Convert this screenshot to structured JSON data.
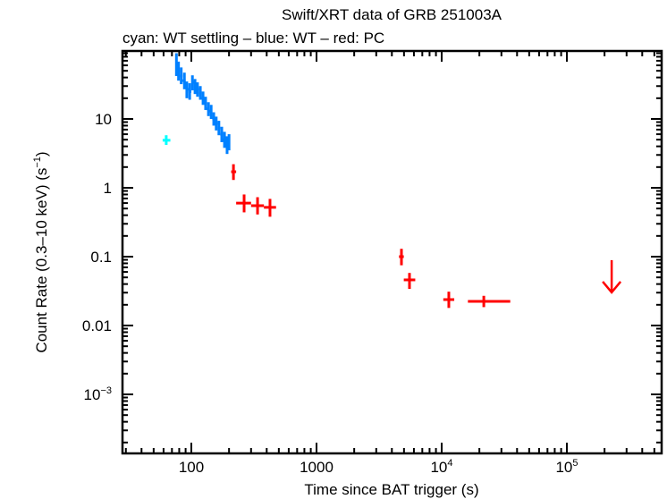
{
  "chart_data": {
    "type": "scatter",
    "title": "Swift/XRT data of GRB 251003A",
    "subtitle": "cyan: WT settling – blue: WT – red: PC",
    "xlabel": "Time since BAT trigger (s)",
    "ylabel": "Count Rate (0.3–10 keV) (s",
    "ylabel_sup": "−1",
    "ylabel_tail": ")",
    "xscale": "log",
    "yscale": "log",
    "xlim": [
      28,
      570000
    ],
    "ylim": [
      0.00014,
      97
    ],
    "grid": false,
    "x_ticks": [
      {
        "value": 100,
        "label": "100",
        "sup": ""
      },
      {
        "value": 1000,
        "label": "1000",
        "sup": ""
      },
      {
        "value": 10000,
        "label": "10",
        "sup": "4"
      },
      {
        "value": 100000,
        "label": "10",
        "sup": "5"
      }
    ],
    "y_ticks": [
      {
        "value": 10,
        "label": "10",
        "sup": ""
      },
      {
        "value": 1,
        "label": "1",
        "sup": ""
      },
      {
        "value": 0.1,
        "label": "0.1",
        "sup": ""
      },
      {
        "value": 0.01,
        "label": "0.01",
        "sup": ""
      },
      {
        "value": 0.001,
        "label": "10",
        "sup": "−3"
      }
    ],
    "series": [
      {
        "name": "WT settling",
        "color": "#00ffff",
        "points": [
          {
            "t": 63,
            "t_lo": 59,
            "t_hi": 68,
            "rate": 4.9,
            "rate_lo": 4.2,
            "rate_hi": 5.8
          }
        ]
      },
      {
        "name": "WT",
        "color": "#0080ff",
        "points": [
          {
            "t": 76,
            "t_lo": 75,
            "t_hi": 78,
            "rate": 60,
            "rate_lo": 42,
            "rate_hi": 90
          },
          {
            "t": 79,
            "t_lo": 78,
            "t_hi": 81,
            "rate": 49,
            "rate_lo": 36,
            "rate_hi": 68
          },
          {
            "t": 83,
            "t_lo": 81,
            "t_hi": 85,
            "rate": 42,
            "rate_lo": 32,
            "rate_hi": 56
          },
          {
            "t": 88,
            "t_lo": 85,
            "t_hi": 90,
            "rate": 36,
            "rate_lo": 27,
            "rate_hi": 47
          },
          {
            "t": 92,
            "t_lo": 90,
            "t_hi": 95,
            "rate": 27,
            "rate_lo": 20,
            "rate_hi": 35
          },
          {
            "t": 97,
            "t_lo": 95,
            "t_hi": 100,
            "rate": 25,
            "rate_lo": 19,
            "rate_hi": 33
          },
          {
            "t": 102,
            "t_lo": 100,
            "t_hi": 105,
            "rate": 34,
            "rate_lo": 26,
            "rate_hi": 43
          },
          {
            "t": 107,
            "t_lo": 105,
            "t_hi": 110,
            "rate": 30,
            "rate_lo": 23,
            "rate_hi": 38
          },
          {
            "t": 112,
            "t_lo": 110,
            "t_hi": 115,
            "rate": 27,
            "rate_lo": 21,
            "rate_hi": 34
          },
          {
            "t": 118,
            "t_lo": 115,
            "t_hi": 121,
            "rate": 24,
            "rate_lo": 19,
            "rate_hi": 30
          },
          {
            "t": 124,
            "t_lo": 121,
            "t_hi": 127,
            "rate": 20,
            "rate_lo": 16,
            "rate_hi": 25
          },
          {
            "t": 130,
            "t_lo": 127,
            "t_hi": 133,
            "rate": 17,
            "rate_lo": 13.5,
            "rate_hi": 21
          },
          {
            "t": 137,
            "t_lo": 133,
            "t_hi": 140,
            "rate": 14,
            "rate_lo": 11,
            "rate_hi": 17.5
          },
          {
            "t": 144,
            "t_lo": 140,
            "t_hi": 147,
            "rate": 13,
            "rate_lo": 10,
            "rate_hi": 16
          },
          {
            "t": 151,
            "t_lo": 147,
            "t_hi": 155,
            "rate": 10,
            "rate_lo": 8,
            "rate_hi": 12.5
          },
          {
            "t": 158,
            "t_lo": 155,
            "t_hi": 162,
            "rate": 8.6,
            "rate_lo": 6.8,
            "rate_hi": 10.8
          },
          {
            "t": 166,
            "t_lo": 162,
            "t_hi": 170,
            "rate": 7.4,
            "rate_lo": 5.8,
            "rate_hi": 9.4
          },
          {
            "t": 175,
            "t_lo": 170,
            "t_hi": 179,
            "rate": 6.0,
            "rate_lo": 4.6,
            "rate_hi": 7.7
          },
          {
            "t": 184,
            "t_lo": 179,
            "t_hi": 188,
            "rate": 5.0,
            "rate_lo": 3.8,
            "rate_hi": 6.5
          },
          {
            "t": 193,
            "t_lo": 188,
            "t_hi": 197,
            "rate": 4.2,
            "rate_lo": 3.1,
            "rate_hi": 5.6
          },
          {
            "t": 200,
            "t_lo": 197,
            "t_hi": 203,
            "rate": 4.6,
            "rate_lo": 3.5,
            "rate_hi": 6.0
          }
        ]
      },
      {
        "name": "PC",
        "color": "#ff0000",
        "points": [
          {
            "t": 217,
            "t_lo": 208,
            "t_hi": 228,
            "rate": 1.71,
            "rate_lo": 1.3,
            "rate_hi": 2.2
          },
          {
            "t": 264,
            "t_lo": 228,
            "t_hi": 300,
            "rate": 0.6,
            "rate_lo": 0.44,
            "rate_hi": 0.8
          },
          {
            "t": 338,
            "t_lo": 300,
            "t_hi": 380,
            "rate": 0.55,
            "rate_lo": 0.41,
            "rate_hi": 0.73
          },
          {
            "t": 425,
            "t_lo": 380,
            "t_hi": 475,
            "rate": 0.52,
            "rate_lo": 0.38,
            "rate_hi": 0.69
          },
          {
            "t": 4770,
            "t_lo": 4560,
            "t_hi": 4980,
            "rate": 0.1,
            "rate_lo": 0.075,
            "rate_hi": 0.13
          },
          {
            "t": 5530,
            "t_lo": 4980,
            "t_hi": 6150,
            "rate": 0.046,
            "rate_lo": 0.034,
            "rate_hi": 0.058
          },
          {
            "t": 11400,
            "t_lo": 10300,
            "t_hi": 12600,
            "rate": 0.0238,
            "rate_lo": 0.018,
            "rate_hi": 0.031
          },
          {
            "t": 21700,
            "t_lo": 16200,
            "t_hi": 35300,
            "rate": 0.0224,
            "rate_lo": 0.0185,
            "rate_hi": 0.027
          }
        ],
        "upper_limits": [
          {
            "t": 228000,
            "rate": 0.089
          }
        ]
      }
    ]
  }
}
